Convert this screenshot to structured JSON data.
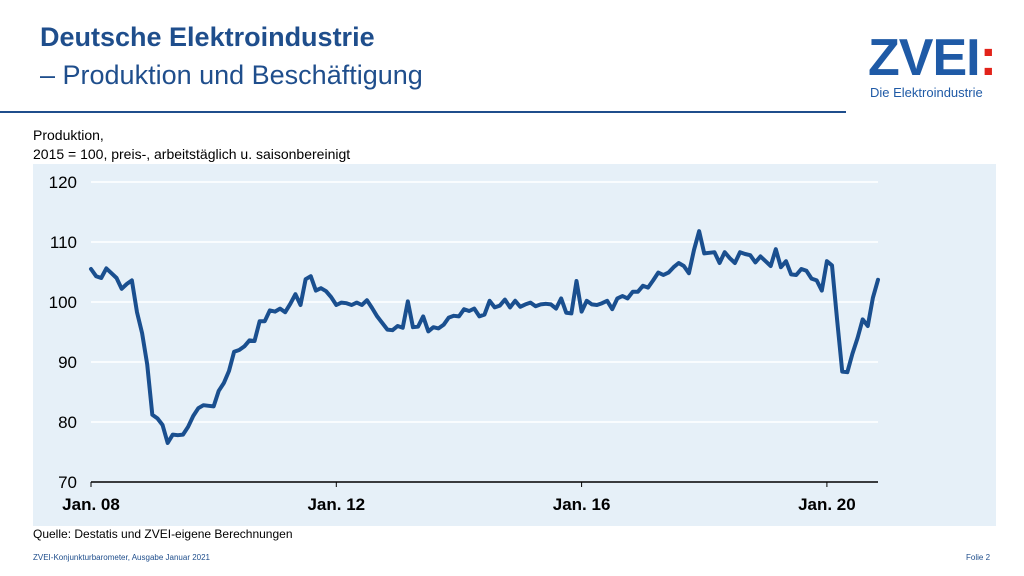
{
  "header": {
    "title_line1": "Deutsche Elektroindustrie",
    "title_line2": "– Produktion und Beschäftigung"
  },
  "logo": {
    "main": "ZVEI",
    "colon": ":",
    "sub": "Die Elektroindustrie"
  },
  "subtitle": {
    "line1": "Produktion,",
    "line2": "2015 = 100, preis-, arbeitstäglich u. saisonbereinigt"
  },
  "source": "Quelle: Destatis und ZVEI-eigene Berechnungen",
  "footer": {
    "left": "ZVEI-Konjunkturbarometer, Ausgabe Januar 2021",
    "right": "Folie 2"
  },
  "colors": {
    "title": "#1f4e8c",
    "line": "#1a4f8f",
    "plot_bg": "#e6f0f8",
    "logo": "#1f5aa6",
    "logo_colon": "#e2231a"
  },
  "chart_data": {
    "type": "line",
    "title": "",
    "xlabel": "",
    "ylabel": "",
    "ylim": [
      70,
      120
    ],
    "yticks": [
      70,
      80,
      90,
      100,
      110,
      120
    ],
    "xticks": [
      "Jan. 08",
      "Jan. 12",
      "Jan. 16",
      "Jan. 20"
    ],
    "grid": true,
    "x_start": "2008-01",
    "x_end": "2020-11",
    "series": [
      {
        "values": [
          105.5,
          104.3,
          104.0,
          105.6,
          104.8,
          104.0,
          102.2,
          103.0,
          103.6,
          98.3,
          94.8,
          89.6,
          81.2,
          80.6,
          79.5,
          76.5,
          77.9,
          77.8,
          77.9,
          79.2,
          81.0,
          82.3,
          82.8,
          82.7,
          82.6,
          85.2,
          86.5,
          88.5,
          91.7,
          92.0,
          92.6,
          93.6,
          93.5,
          96.8,
          96.8,
          98.6,
          98.4,
          98.9,
          98.3,
          99.7,
          101.3,
          99.5,
          103.8,
          104.3,
          101.9,
          102.3,
          101.8,
          100.8,
          99.5,
          99.9,
          99.8,
          99.5,
          99.9,
          99.5,
          100.3,
          99.0,
          97.6,
          96.5,
          95.4,
          95.3,
          96.0,
          95.7,
          100.1,
          95.8,
          95.9,
          97.6,
          95.1,
          95.8,
          95.6,
          96.2,
          97.4,
          97.7,
          97.6,
          98.8,
          98.5,
          98.9,
          97.6,
          97.9,
          100.2,
          99.1,
          99.4,
          100.4,
          99.1,
          100.2,
          99.2,
          99.6,
          99.9,
          99.3,
          99.6,
          99.7,
          99.6,
          98.9,
          100.6,
          98.2,
          98.1,
          103.5,
          98.4,
          100.2,
          99.6,
          99.5,
          99.8,
          100.2,
          98.8,
          100.6,
          101.0,
          100.6,
          101.7,
          101.7,
          102.7,
          102.4,
          103.6,
          104.9,
          104.5,
          104.9,
          105.8,
          106.5,
          106.0,
          104.8,
          108.7,
          111.8,
          108.1,
          108.2,
          108.3,
          106.5,
          108.3,
          107.3,
          106.5,
          108.3,
          108.0,
          107.8,
          106.6,
          107.6,
          106.8,
          106.0,
          108.8,
          105.8,
          106.8,
          104.6,
          104.5,
          105.5,
          105.2,
          103.9,
          103.6,
          101.9,
          106.8,
          106.1,
          97.0,
          88.4,
          88.3,
          91.4,
          94.0,
          97.1,
          96.0,
          100.7,
          103.7
        ]
      }
    ]
  }
}
